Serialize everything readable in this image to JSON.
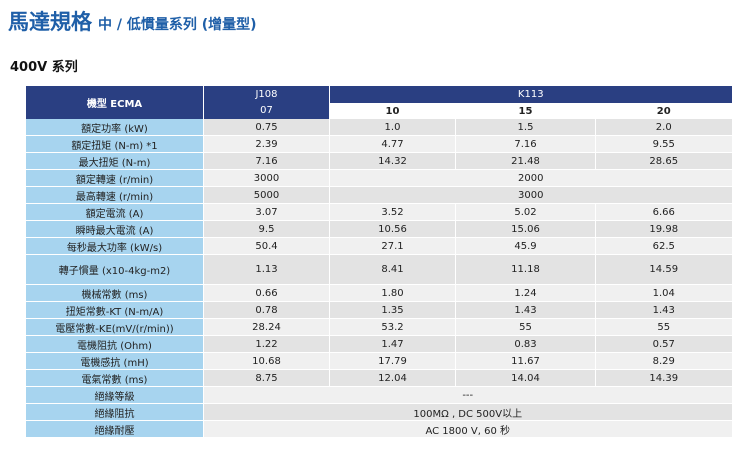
{
  "title": {
    "main": "馬達規格",
    "sub": "中 / 低慣量系列 (增量型)"
  },
  "series_label": "400V 系列",
  "table": {
    "model_header": "機型 ECMA",
    "groups": [
      {
        "name": "J108",
        "span": 1
      },
      {
        "name": "K113",
        "span": 3
      }
    ],
    "models": [
      "07",
      "10",
      "15",
      "20"
    ],
    "rows": [
      {
        "label": "額定功率 (kW)",
        "cells": [
          {
            "v": "0.75",
            "span": 1
          },
          {
            "v": "1.0",
            "span": 1
          },
          {
            "v": "1.5",
            "span": 1
          },
          {
            "v": "2.0",
            "span": 1
          }
        ]
      },
      {
        "label": "額定扭矩 (N-m) *1",
        "cells": [
          {
            "v": "2.39",
            "span": 1
          },
          {
            "v": "4.77",
            "span": 1
          },
          {
            "v": "7.16",
            "span": 1
          },
          {
            "v": "9.55",
            "span": 1
          }
        ]
      },
      {
        "label": "最大扭矩 (N-m)",
        "cells": [
          {
            "v": "7.16",
            "span": 1
          },
          {
            "v": "14.32",
            "span": 1
          },
          {
            "v": "21.48",
            "span": 1
          },
          {
            "v": "28.65",
            "span": 1
          }
        ]
      },
      {
        "label": "額定轉速 (r/min)",
        "cells": [
          {
            "v": "3000",
            "span": 1
          },
          {
            "v": "2000",
            "span": 3
          }
        ]
      },
      {
        "label": "最高轉速 (r/min)",
        "cells": [
          {
            "v": "5000",
            "span": 1
          },
          {
            "v": "3000",
            "span": 3
          }
        ]
      },
      {
        "label": "額定電流 (A)",
        "cells": [
          {
            "v": "3.07",
            "span": 1
          },
          {
            "v": "3.52",
            "span": 1
          },
          {
            "v": "5.02",
            "span": 1
          },
          {
            "v": "6.66",
            "span": 1
          }
        ]
      },
      {
        "label": "瞬時最大電流 (A)",
        "cells": [
          {
            "v": "9.5",
            "span": 1
          },
          {
            "v": "10.56",
            "span": 1
          },
          {
            "v": "15.06",
            "span": 1
          },
          {
            "v": "19.98",
            "span": 1
          }
        ]
      },
      {
        "label": "每秒最大功率 (kW/s)",
        "cells": [
          {
            "v": "50.4",
            "span": 1
          },
          {
            "v": "27.1",
            "span": 1
          },
          {
            "v": "45.9",
            "span": 1
          },
          {
            "v": "62.5",
            "span": 1
          }
        ]
      },
      {
        "label": "轉子慣量 (x10-4kg-m2)",
        "tall": true,
        "cells": [
          {
            "v": "1.13",
            "span": 1
          },
          {
            "v": "8.41",
            "span": 1
          },
          {
            "v": "11.18",
            "span": 1
          },
          {
            "v": "14.59",
            "span": 1
          }
        ]
      },
      {
        "label": "機械常數 (ms)",
        "cells": [
          {
            "v": "0.66",
            "span": 1
          },
          {
            "v": "1.80",
            "span": 1
          },
          {
            "v": "1.24",
            "span": 1
          },
          {
            "v": "1.04",
            "span": 1
          }
        ]
      },
      {
        "label": "扭矩常數-KT (N-m/A)",
        "cells": [
          {
            "v": "0.78",
            "span": 1
          },
          {
            "v": "1.35",
            "span": 1
          },
          {
            "v": "1.43",
            "span": 1
          },
          {
            "v": "1.43",
            "span": 1
          }
        ]
      },
      {
        "label": "電壓常數-KE(mV/(r/min))",
        "cells": [
          {
            "v": "28.24",
            "span": 1
          },
          {
            "v": "53.2",
            "span": 1
          },
          {
            "v": "55",
            "span": 1
          },
          {
            "v": "55",
            "span": 1
          }
        ]
      },
      {
        "label": "電機阻抗 (Ohm)",
        "cells": [
          {
            "v": "1.22",
            "span": 1
          },
          {
            "v": "1.47",
            "span": 1
          },
          {
            "v": "0.83",
            "span": 1
          },
          {
            "v": "0.57",
            "span": 1
          }
        ]
      },
      {
        "label": "電機感抗 (mH)",
        "cells": [
          {
            "v": "10.68",
            "span": 1
          },
          {
            "v": "17.79",
            "span": 1
          },
          {
            "v": "11.67",
            "span": 1
          },
          {
            "v": "8.29",
            "span": 1
          }
        ]
      },
      {
        "label": "電氣常數 (ms)",
        "cells": [
          {
            "v": "8.75",
            "span": 1
          },
          {
            "v": "12.04",
            "span": 1
          },
          {
            "v": "14.04",
            "span": 1
          },
          {
            "v": "14.39",
            "span": 1
          }
        ]
      },
      {
        "label": "絕緣等級",
        "cells": [
          {
            "v": "---",
            "span": 4
          }
        ]
      },
      {
        "label": "絕緣阻抗",
        "cells": [
          {
            "v": "100MΩ , DC 500V以上",
            "span": 4
          }
        ]
      },
      {
        "label": "絕緣耐壓",
        "cells": [
          {
            "v": "AC 1800 V, 60 秒",
            "span": 4
          }
        ]
      }
    ]
  }
}
